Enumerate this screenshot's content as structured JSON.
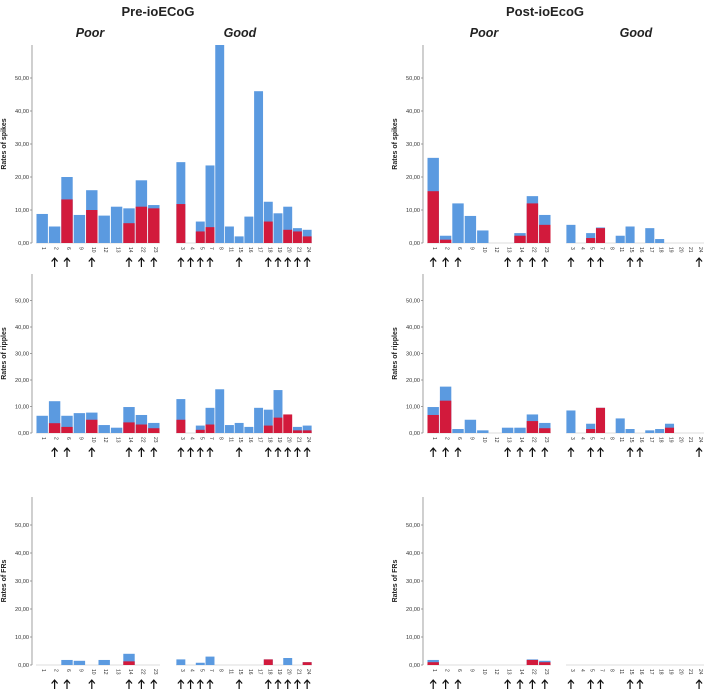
{
  "titles": {
    "pre": "Pre-ioECoG",
    "post": "Post-ioEcoG",
    "poor": "Poor",
    "good": "Good"
  },
  "colors": {
    "total": "#5b9ae0",
    "subset": "#d21a3c"
  },
  "chart_data": {
    "type": "bar",
    "stacked_overlay": true,
    "ylim": [
      0,
      60
    ],
    "y_ticks": [
      "0,00",
      "10,00",
      "20,00",
      "30,00",
      "40,00",
      "50,00"
    ],
    "y_tick_values": [
      0,
      10,
      20,
      30,
      40,
      50
    ],
    "rows": [
      {
        "ylabel": "Rates of spikes"
      },
      {
        "ylabel": "Rates of ripples"
      },
      {
        "ylabel": "Rates of FRs"
      }
    ],
    "columns": [
      {
        "period": "Pre-ioECoG",
        "outcome": "Poor",
        "categories": [
          "1",
          "2",
          "6",
          "9",
          "10",
          "12",
          "13",
          "14",
          "22",
          "23"
        ],
        "arrows": [
          false,
          true,
          true,
          false,
          true,
          false,
          false,
          true,
          true,
          true
        ]
      },
      {
        "period": "Pre-ioECoG",
        "outcome": "Good",
        "categories": [
          "3",
          "4",
          "5",
          "7",
          "8",
          "11",
          "15",
          "16",
          "17",
          "18",
          "19",
          "20",
          "21",
          "24"
        ],
        "arrows": [
          true,
          true,
          true,
          true,
          false,
          false,
          true,
          false,
          false,
          true,
          true,
          true,
          true,
          true
        ]
      },
      {
        "period": "Post-ioEcoG",
        "outcome": "Poor",
        "categories": [
          "1",
          "2",
          "6",
          "9",
          "10",
          "12",
          "13",
          "14",
          "22",
          "23"
        ],
        "arrows": [
          true,
          true,
          true,
          false,
          false,
          false,
          true,
          true,
          true,
          true
        ]
      },
      {
        "period": "Post-ioEcoG",
        "outcome": "Good",
        "categories": [
          "3",
          "4",
          "5",
          "7",
          "8",
          "11",
          "15",
          "16",
          "17",
          "18",
          "19",
          "20",
          "21",
          "24"
        ],
        "arrows": [
          true,
          false,
          true,
          true,
          false,
          false,
          true,
          true,
          false,
          false,
          false,
          false,
          false,
          true
        ]
      }
    ],
    "panels": [
      {
        "row": 0,
        "col": 0,
        "total": [
          8.8,
          5.0,
          20.0,
          8.5,
          16.0,
          8.3,
          11.0,
          10.5,
          19.0,
          11.5
        ],
        "subset": [
          0,
          0,
          13.2,
          0,
          10.0,
          0,
          0,
          6.0,
          11.0,
          10.5
        ]
      },
      {
        "row": 0,
        "col": 1,
        "total": [
          24.5,
          0,
          6.5,
          23.5,
          60.0,
          5.0,
          2.0,
          8.0,
          46.0,
          12.5,
          9.0,
          11.0,
          4.5,
          4.0
        ],
        "subset": [
          11.8,
          0,
          3.5,
          4.8,
          0,
          0,
          0,
          0,
          0,
          6.5,
          0,
          4.0,
          3.5,
          2.0
        ]
      },
      {
        "row": 0,
        "col": 2,
        "total": [
          25.8,
          2.2,
          12.0,
          8.2,
          3.8,
          0,
          0,
          3.0,
          14.2,
          8.5
        ],
        "subset": [
          15.7,
          1.0,
          0,
          0,
          0,
          0,
          0,
          2.2,
          12.0,
          5.5
        ]
      },
      {
        "row": 0,
        "col": 3,
        "total": [
          5.5,
          0,
          3.0,
          4.7,
          0,
          2.2,
          5.0,
          0,
          4.5,
          1.2,
          0,
          0,
          0,
          0
        ],
        "subset": [
          0,
          0,
          1.5,
          4.5,
          0,
          0,
          0,
          0,
          0,
          0,
          0,
          0,
          0,
          0
        ]
      },
      {
        "row": 1,
        "col": 0,
        "total": [
          6.5,
          12.0,
          6.5,
          7.5,
          7.7,
          3.0,
          2.0,
          9.8,
          6.8,
          3.8
        ],
        "subset": [
          0,
          3.7,
          2.3,
          0,
          5.0,
          0,
          0,
          4.0,
          3.2,
          1.8
        ]
      },
      {
        "row": 1,
        "col": 1,
        "total": [
          12.8,
          0,
          2.8,
          9.5,
          16.5,
          3.0,
          3.8,
          2.3,
          9.5,
          8.8,
          16.2,
          0,
          2.3,
          2.8
        ],
        "subset": [
          5.0,
          0,
          1.2,
          3.2,
          0,
          0,
          0,
          0,
          0,
          2.8,
          5.8,
          7.0,
          1.0,
          1.0
        ]
      },
      {
        "row": 1,
        "col": 2,
        "total": [
          9.8,
          17.5,
          1.5,
          5.0,
          1.0,
          0,
          2.0,
          2.0,
          7.0,
          3.8
        ],
        "subset": [
          6.8,
          12.2,
          0,
          0,
          0,
          0,
          0,
          0,
          4.5,
          1.8
        ]
      },
      {
        "row": 1,
        "col": 3,
        "total": [
          8.5,
          0,
          3.5,
          9.5,
          0,
          5.5,
          1.5,
          0,
          1.0,
          1.5,
          3.5,
          0,
          0,
          0
        ],
        "subset": [
          0,
          0,
          1.5,
          9.5,
          0,
          0,
          0,
          0,
          0,
          0,
          2.0,
          0,
          0,
          0
        ]
      },
      {
        "row": 2,
        "col": 0,
        "total": [
          0,
          0,
          1.8,
          1.5,
          0,
          1.8,
          0,
          4.0,
          0,
          0
        ],
        "subset": [
          0,
          0,
          0,
          0,
          0,
          0,
          0,
          1.3,
          0,
          0
        ]
      },
      {
        "row": 2,
        "col": 1,
        "total": [
          2.0,
          0,
          0.8,
          3.0,
          0,
          0,
          0,
          0,
          0,
          2.0,
          0,
          2.5,
          0,
          1.0
        ],
        "subset": [
          0,
          0,
          0,
          0,
          0,
          0,
          0,
          0,
          0,
          2.0,
          0,
          0,
          0,
          1.0
        ]
      },
      {
        "row": 2,
        "col": 2,
        "total": [
          1.8,
          0,
          0,
          0,
          0,
          0,
          0,
          0,
          2.0,
          1.5
        ],
        "subset": [
          1.0,
          0,
          0,
          0,
          0,
          0,
          0,
          0,
          1.8,
          1.0
        ]
      },
      {
        "row": 2,
        "col": 3,
        "total": [
          0,
          0,
          0,
          0,
          0,
          0,
          0,
          0,
          0,
          0,
          0,
          0,
          0,
          0
        ],
        "subset": [
          0,
          0,
          0,
          0,
          0,
          0,
          0,
          0,
          0,
          0,
          0,
          0,
          0,
          0
        ]
      }
    ]
  }
}
